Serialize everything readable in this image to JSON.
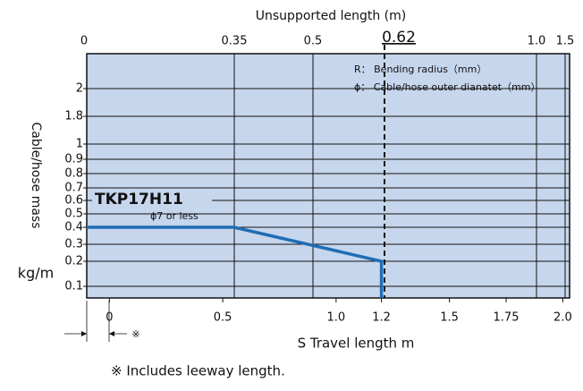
{
  "chart_data": {
    "type": "line",
    "title": "Unsupported length (m)",
    "x_label": "S  Travel length  m",
    "y_label": "Cable/hose mass",
    "y_unit": "kg/m",
    "footnote": "※ Includes leeway length.",
    "leeway_mark": "※",
    "legend_notes": [
      "R：  Bending radius（mm）",
      "ϕ：  Cable/hose outer dianatet（mm）"
    ],
    "model": "TKP17H11",
    "condition": "ϕ7 or less",
    "x": [
      -0.1,
      0.55,
      1.2,
      1.2
    ],
    "series": [
      {
        "name": "TKP17H11",
        "color": "#1f6db4",
        "values": [
          0.4,
          0.4,
          0.2,
          0.05
        ]
      }
    ],
    "xlim": [
      -0.1,
      2.03
    ],
    "xticks": [
      0,
      0.5,
      {
        "value": 1,
        "label": "1.0"
      },
      1.2,
      1.5,
      1.75,
      {
        "value": 2,
        "label": "2.0"
      }
    ],
    "x2ticks": [
      0,
      0.35,
      0.5,
      0.62,
      {
        "value": 1,
        "label": "1.0"
      },
      1.5
    ],
    "ylim": [
      0.05,
      2.25
    ],
    "yticks": [
      0.1,
      0.2,
      0.3,
      0.4,
      0.5,
      0.6,
      0.7,
      0.8,
      0.9,
      1,
      1.8,
      2
    ],
    "grid": true
  }
}
